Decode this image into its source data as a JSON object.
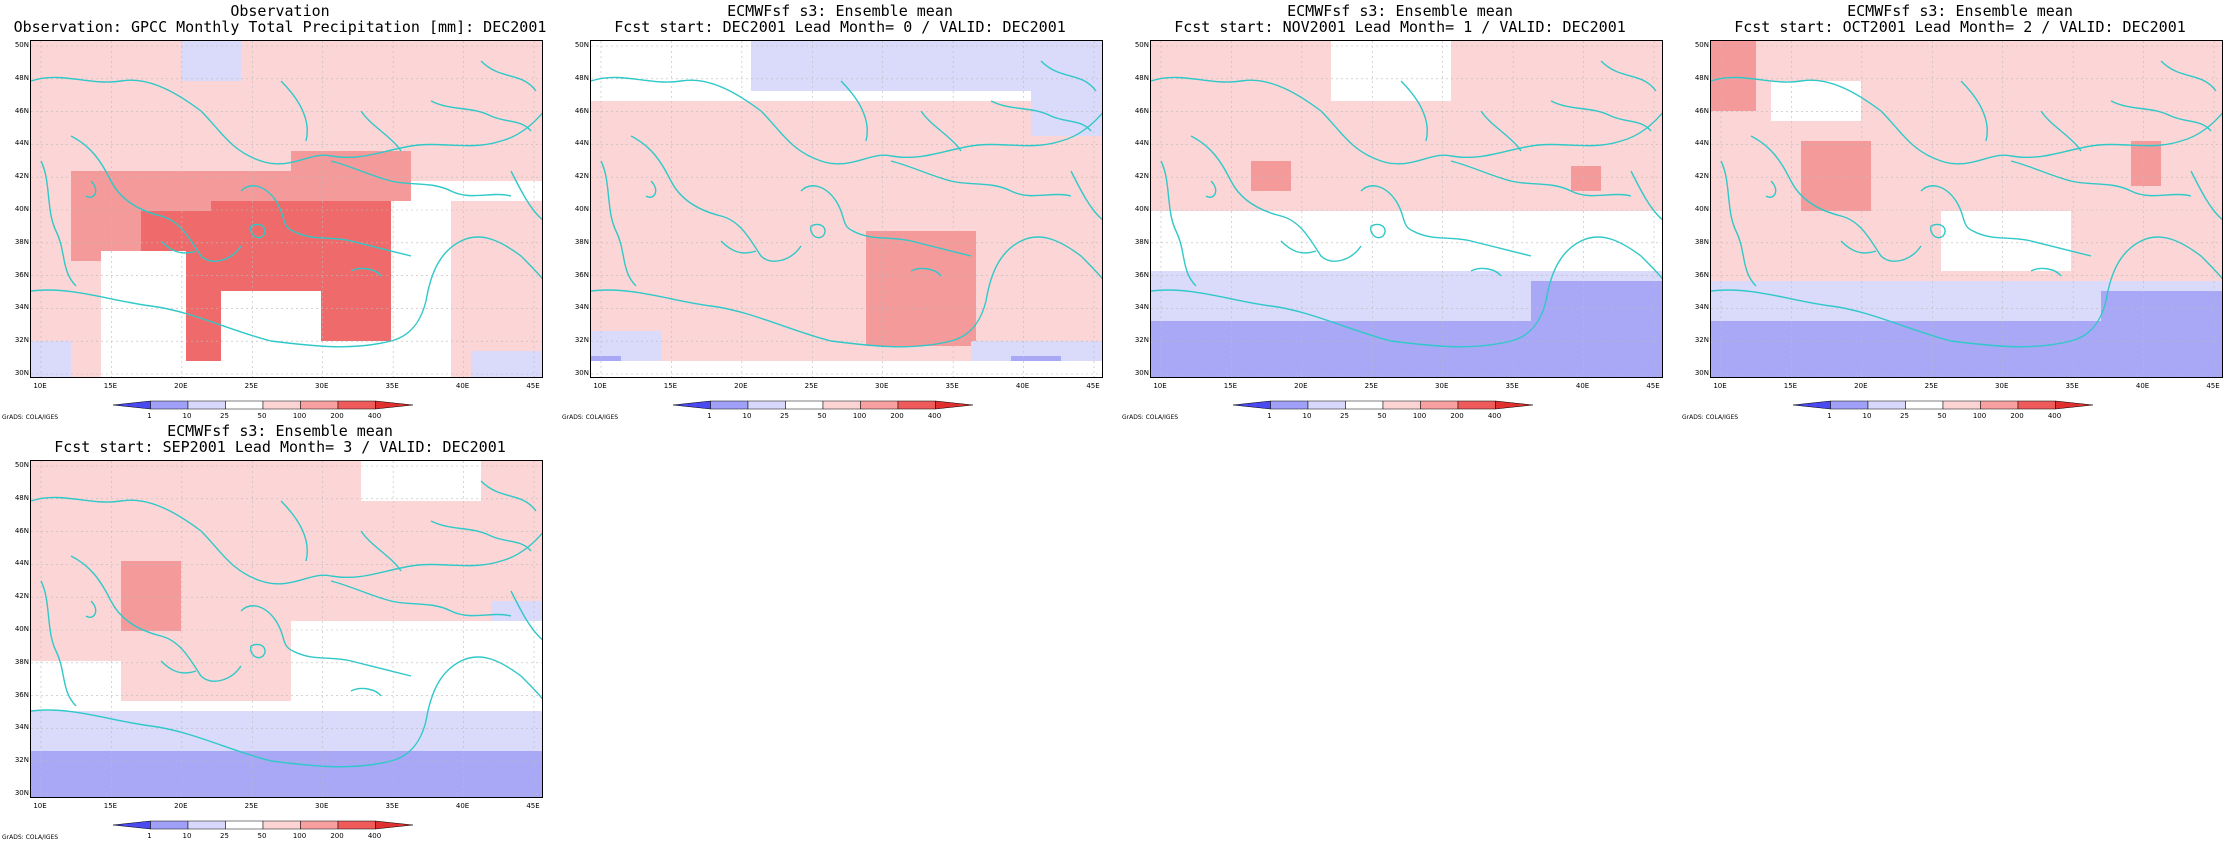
{
  "panels": [
    {
      "title1": "Observation",
      "title2": "Observation: GPCC Monthly Total Precipitation [mm]: DEC2001",
      "fields": [
        [
          "pos1",
          0,
          0,
          513,
          140
        ],
        [
          "pos1",
          0,
          140,
          80,
          338
        ],
        [
          "pos1",
          420,
          160,
          513,
          338
        ],
        [
          "pos2",
          40,
          130,
          360,
          220
        ],
        [
          "pos2",
          260,
          110,
          380,
          160
        ],
        [
          "pos3",
          180,
          160,
          360,
          300
        ],
        [
          "pos3",
          110,
          170,
          200,
          320
        ],
        [
          "neg1",
          150,
          0,
          210,
          40
        ],
        [
          "neg1",
          440,
          310,
          513,
          338
        ],
        [
          "neg1",
          0,
          300,
          40,
          338
        ]
      ],
      "blanks": [
        [
          70,
          210,
          155,
          338
        ],
        [
          190,
          250,
          290,
          338
        ]
      ]
    },
    {
      "title1": "ECMWFsf s3: Ensemble mean",
      "title2": "Fcst start: DEC2001  Lead Month= 0 / VALID: DEC2001",
      "fields": [
        [
          "pos1",
          0,
          60,
          513,
          320
        ],
        [
          "pos2",
          275,
          190,
          385,
          305
        ],
        [
          "neg1",
          160,
          0,
          513,
          50
        ],
        [
          "neg1",
          440,
          50,
          513,
          95
        ],
        [
          "neg1",
          0,
          290,
          70,
          338
        ],
        [
          "neg1",
          380,
          300,
          513,
          338
        ],
        [
          "neg2",
          420,
          315,
          470,
          338
        ],
        [
          "neg2",
          0,
          315,
          30,
          338
        ]
      ],
      "blanks": [
        [
          0,
          0,
          160,
          50
        ],
        [
          0,
          320,
          513,
          338
        ]
      ]
    },
    {
      "title1": "ECMWFsf s3: Ensemble mean",
      "title2": "Fcst start: NOV2001  Lead Month= 1 / VALID: DEC2001",
      "fields": [
        [
          "pos1",
          0,
          0,
          513,
          230
        ],
        [
          "pos2",
          100,
          120,
          140,
          150
        ],
        [
          "pos2",
          420,
          125,
          450,
          150
        ],
        [
          "neg1",
          0,
          230,
          513,
          338
        ],
        [
          "neg2",
          0,
          280,
          513,
          338
        ],
        [
          "neg2",
          380,
          240,
          513,
          338
        ]
      ],
      "blanks": [
        [
          0,
          170,
          513,
          230
        ],
        [
          180,
          0,
          300,
          60
        ]
      ]
    },
    {
      "title1": "ECMWFsf s3: Ensemble mean",
      "title2": "Fcst start: OCT2001  Lead Month= 2 / VALID: DEC2001",
      "fields": [
        [
          "pos1",
          0,
          0,
          513,
          240
        ],
        [
          "pos2",
          0,
          0,
          45,
          70
        ],
        [
          "pos2",
          90,
          100,
          160,
          170
        ],
        [
          "pos2",
          420,
          100,
          450,
          145
        ],
        [
          "neg1",
          0,
          240,
          513,
          338
        ],
        [
          "neg2",
          0,
          280,
          513,
          338
        ],
        [
          "neg2",
          390,
          250,
          513,
          338
        ]
      ],
      "blanks": [
        [
          230,
          170,
          360,
          230
        ],
        [
          60,
          40,
          150,
          80
        ]
      ]
    },
    {
      "title1": "ECMWFsf s3: Ensemble mean",
      "title2": "Fcst start: SEP2001  Lead Month= 3 / VALID: DEC2001",
      "fields": [
        [
          "pos1",
          0,
          0,
          513,
          240
        ],
        [
          "pos2",
          90,
          100,
          150,
          170
        ],
        [
          "neg1",
          0,
          250,
          513,
          338
        ],
        [
          "neg1",
          460,
          140,
          513,
          200
        ],
        [
          "neg2",
          0,
          290,
          513,
          338
        ]
      ],
      "blanks": [
        [
          260,
          160,
          513,
          250
        ],
        [
          330,
          0,
          450,
          40
        ],
        [
          0,
          200,
          90,
          240
        ]
      ]
    }
  ],
  "map": {
    "lon_labels": [
      "10E",
      "15E",
      "20E",
      "25E",
      "30E",
      "35E",
      "40E",
      "45E"
    ],
    "lat_labels": [
      "50N",
      "48N",
      "46N",
      "44N",
      "42N",
      "40N",
      "38N",
      "36N",
      "34N",
      "32N",
      "30N"
    ]
  },
  "colorbar": {
    "labels": [
      "1",
      "10",
      "25",
      "50",
      "100",
      "200",
      "400"
    ],
    "colors": [
      "#4a4aef",
      "#a0a0f8",
      "#d8d8fc",
      "#ffffff",
      "#fcd4d4",
      "#f8a0a0",
      "#ef5a5a",
      "#e03030"
    ]
  },
  "credit": "GrADS: COLA/IGES",
  "colors": {
    "coast": "#30c8c8",
    "grid": "#bbbbbb",
    "pos1": "#fcd6d6",
    "pos2": "#f59a9a",
    "pos3": "#ef6b6b",
    "neg1": "#dadafb",
    "neg2": "#a8a8f6"
  }
}
